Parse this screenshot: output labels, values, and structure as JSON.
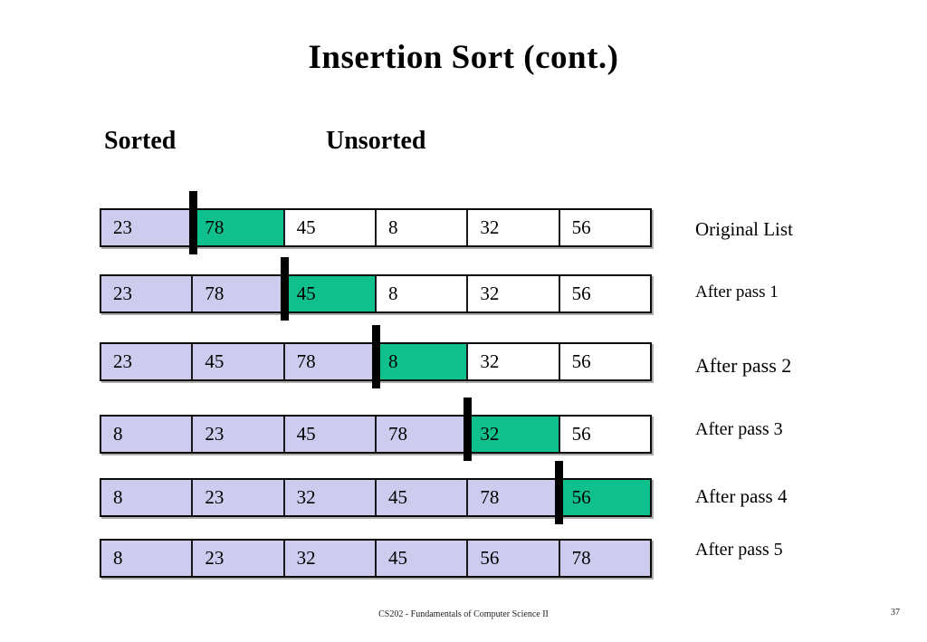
{
  "slide": {
    "title": "Insertion Sort (cont.)",
    "sorted_heading": "Sorted",
    "unsorted_heading": "Unsorted"
  },
  "colors": {
    "sorted_fill": "#cdccee",
    "inserting_fill": "#0fc08c",
    "unsorted_fill": "#ffffff",
    "divider_bar": "#000000"
  },
  "rows": [
    {
      "label": "Original List",
      "divider_before_cell": 1,
      "cells": [
        {
          "value": "23",
          "state": "sorted"
        },
        {
          "value": "78",
          "state": "inserting"
        },
        {
          "value": "45",
          "state": "unsorted"
        },
        {
          "value": "8",
          "state": "unsorted"
        },
        {
          "value": "32",
          "state": "unsorted"
        },
        {
          "value": "56",
          "state": "unsorted"
        }
      ]
    },
    {
      "label": "After pass 1",
      "divider_before_cell": 2,
      "cells": [
        {
          "value": "23",
          "state": "sorted"
        },
        {
          "value": "78",
          "state": "sorted"
        },
        {
          "value": "45",
          "state": "inserting"
        },
        {
          "value": "8",
          "state": "unsorted"
        },
        {
          "value": "32",
          "state": "unsorted"
        },
        {
          "value": "56",
          "state": "unsorted"
        }
      ]
    },
    {
      "label": "After pass 2",
      "divider_before_cell": 3,
      "cells": [
        {
          "value": "23",
          "state": "sorted"
        },
        {
          "value": "45",
          "state": "sorted"
        },
        {
          "value": "78",
          "state": "sorted"
        },
        {
          "value": "8",
          "state": "inserting"
        },
        {
          "value": "32",
          "state": "unsorted"
        },
        {
          "value": "56",
          "state": "unsorted"
        }
      ]
    },
    {
      "label": "After pass 3",
      "divider_before_cell": 4,
      "cells": [
        {
          "value": "8",
          "state": "sorted"
        },
        {
          "value": "23",
          "state": "sorted"
        },
        {
          "value": "45",
          "state": "sorted"
        },
        {
          "value": "78",
          "state": "sorted"
        },
        {
          "value": "32",
          "state": "inserting"
        },
        {
          "value": "56",
          "state": "unsorted"
        }
      ]
    },
    {
      "label": "After pass 4",
      "divider_before_cell": 5,
      "cells": [
        {
          "value": "8",
          "state": "sorted"
        },
        {
          "value": "23",
          "state": "sorted"
        },
        {
          "value": "32",
          "state": "sorted"
        },
        {
          "value": "45",
          "state": "sorted"
        },
        {
          "value": "78",
          "state": "sorted"
        },
        {
          "value": "56",
          "state": "inserting"
        }
      ]
    },
    {
      "label": "After pass 5",
      "divider_before_cell": null,
      "cells": [
        {
          "value": "8",
          "state": "sorted"
        },
        {
          "value": "23",
          "state": "sorted"
        },
        {
          "value": "32",
          "state": "sorted"
        },
        {
          "value": "45",
          "state": "sorted"
        },
        {
          "value": "56",
          "state": "sorted"
        },
        {
          "value": "78",
          "state": "sorted"
        }
      ]
    }
  ],
  "footer": {
    "course": "CS202 - Fundamentals of Computer Science II",
    "page_number": "37"
  }
}
